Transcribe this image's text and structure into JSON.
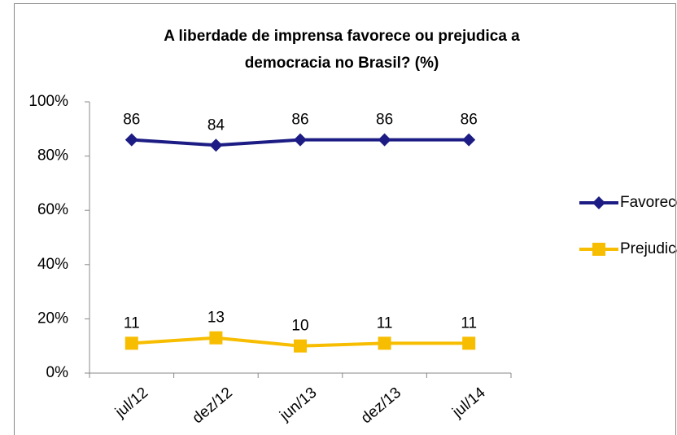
{
  "chart_data": {
    "type": "line",
    "title": [
      "A liberdade de imprensa favorece ou prejudica a",
      "democracia no Brasil? (%)"
    ],
    "categories": [
      "jul/12",
      "dez/12",
      "jun/13",
      "dez/13",
      "jul/14"
    ],
    "series": [
      {
        "name": "Favorece",
        "color": "#1c1c84",
        "marker": "diamond",
        "values": [
          86,
          84,
          86,
          86,
          86
        ]
      },
      {
        "name": "Prejudica",
        "color": "#f7bd00",
        "marker": "square",
        "values": [
          11,
          13,
          10,
          11,
          11
        ]
      }
    ],
    "ylim": [
      0,
      100
    ],
    "yticks": [
      {
        "value": 0,
        "label": "0%"
      },
      {
        "value": 20,
        "label": "20%"
      },
      {
        "value": 40,
        "label": "40%"
      },
      {
        "value": 60,
        "label": "60%"
      },
      {
        "value": 80,
        "label": "80%"
      },
      {
        "value": 100,
        "label": "100%"
      }
    ],
    "legend": "right",
    "data_labels": true
  }
}
